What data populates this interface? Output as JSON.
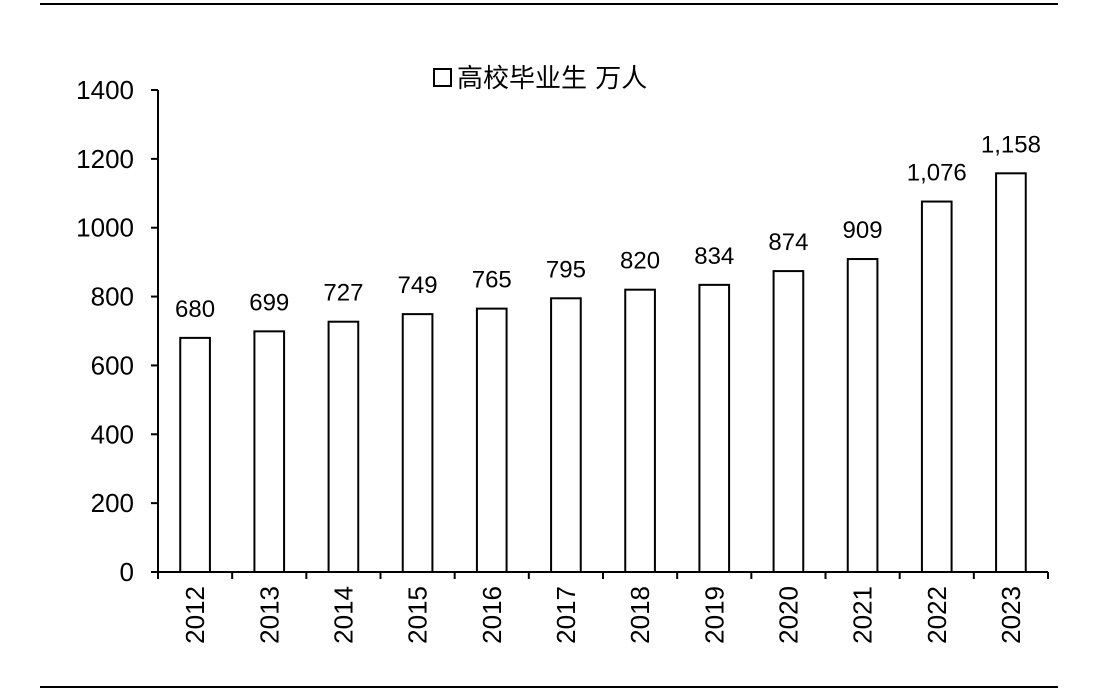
{
  "chart_data": {
    "type": "bar",
    "categories": [
      "2012",
      "2013",
      "2014",
      "2015",
      "2016",
      "2017",
      "2018",
      "2019",
      "2020",
      "2021",
      "2022",
      "2023"
    ],
    "series": [
      {
        "name": "高校毕业生 万人",
        "values": [
          680,
          699,
          727,
          749,
          765,
          795,
          820,
          834,
          874,
          909,
          1076,
          1158
        ],
        "labels": [
          "680",
          "699",
          "727",
          "749",
          "765",
          "795",
          "820",
          "834",
          "874",
          "909",
          "1,076",
          "1,158"
        ]
      }
    ],
    "yticks": [
      "0",
      "200",
      "400",
      "600",
      "800",
      "1000",
      "1200",
      "1400"
    ],
    "ylim": [
      0,
      1400
    ],
    "legend_position": "top",
    "grid": false,
    "bar_fill": "#ffffff",
    "bar_stroke": "#000000"
  }
}
